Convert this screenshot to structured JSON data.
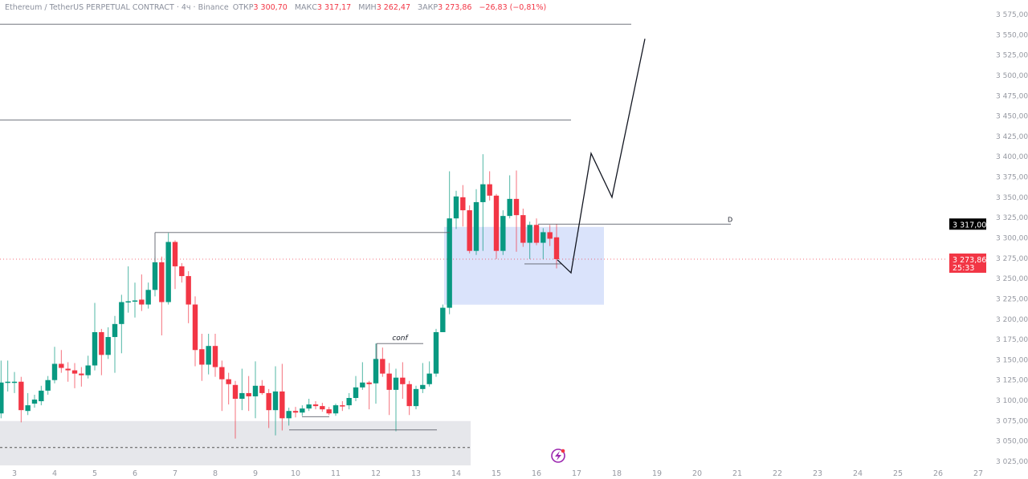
{
  "legend": {
    "symbol": "Ethereum / TetherUS PERPETUAL CONTRACT · 4ч · Binance",
    "open_label": "ОТКР",
    "open": "3 300,70",
    "high_label": "МАКС",
    "high": "3 317,17",
    "low_label": "МИН",
    "low": "3 262,47",
    "close_label": "ЗАКР",
    "close": "3 273,86",
    "change": "−26,83 (−0,81%)"
  },
  "price_tags": {
    "level": "3 317,00",
    "last": "3 273,86",
    "countdown": "25:33"
  },
  "colors": {
    "up": "#089981",
    "down": "#f23645",
    "box": "#d6e0fb",
    "zone": "#e6e7eb",
    "last_price_line": "#f23645",
    "level_tag": "#000000",
    "icon": "#9c27b0"
  },
  "icon": "lightning-bolt-icon",
  "chart_data": {
    "type": "candlestick",
    "ylim": [
      3020,
      3580
    ],
    "xlim": [
      2.64,
      27.2
    ],
    "y_ticks": [
      "3 575,00",
      "3 550,00",
      "3 525,00",
      "3 500,00",
      "3 475,00",
      "3 450,00",
      "3 425,00",
      "3 400,00",
      "3 375,00",
      "3 350,00",
      "3 325,00",
      "3 300,00",
      "3 275,00",
      "3 250,00",
      "3 225,00",
      "3 200,00",
      "3 175,00",
      "3 150,00",
      "3 125,00",
      "3 100,00",
      "3 075,00",
      "3 050,00",
      "3 025,00"
    ],
    "x_ticks": [
      "3",
      "4",
      "5",
      "6",
      "7",
      "8",
      "9",
      "10",
      "11",
      "12",
      "13",
      "14",
      "15",
      "16",
      "17",
      "18",
      "19",
      "20",
      "21",
      "22",
      "23",
      "24",
      "25",
      "26",
      "27"
    ],
    "first_candle": "2 16:00",
    "interval_hours": 4,
    "ohlc": [
      [
        3084,
        3149,
        3078,
        3122
      ],
      [
        3123,
        3149,
        3111,
        3123
      ],
      [
        3123,
        3135,
        3109,
        3123
      ],
      [
        3123,
        3129,
        3073,
        3088
      ],
      [
        3087,
        3109,
        3082,
        3094
      ],
      [
        3096,
        3107,
        3091,
        3101
      ],
      [
        3099,
        3118,
        3094,
        3112
      ],
      [
        3112,
        3130,
        3107,
        3125
      ],
      [
        3125,
        3166,
        3121,
        3145
      ],
      [
        3145,
        3162,
        3134,
        3140
      ],
      [
        3139,
        3147,
        3123,
        3137
      ],
      [
        3137,
        3146,
        3115,
        3133
      ],
      [
        3133,
        3141,
        3117,
        3131
      ],
      [
        3131,
        3155,
        3127,
        3143
      ],
      [
        3143,
        3220,
        3137,
        3184
      ],
      [
        3184,
        3188,
        3131,
        3156
      ],
      [
        3156,
        3190,
        3151,
        3178
      ],
      [
        3178,
        3204,
        3134,
        3194
      ],
      [
        3194,
        3230,
        3158,
        3221
      ],
      [
        3221,
        3265,
        3208,
        3222
      ],
      [
        3222,
        3245,
        3202,
        3223
      ],
      [
        3224,
        3255,
        3210,
        3218
      ],
      [
        3218,
        3245,
        3213,
        3236
      ],
      [
        3236,
        3277,
        3228,
        3270
      ],
      [
        3270,
        3277,
        3180,
        3221
      ],
      [
        3221,
        3306,
        3218,
        3295
      ],
      [
        3295,
        3297,
        3237,
        3265
      ],
      [
        3265,
        3269,
        3245,
        3253
      ],
      [
        3253,
        3259,
        3195,
        3218
      ],
      [
        3218,
        3228,
        3142,
        3162
      ],
      [
        3163,
        3182,
        3124,
        3144
      ],
      [
        3144,
        3182,
        3132,
        3167
      ],
      [
        3167,
        3182,
        3129,
        3141
      ],
      [
        3141,
        3149,
        3087,
        3126
      ],
      [
        3126,
        3134,
        3095,
        3120
      ],
      [
        3119,
        3124,
        3053,
        3102
      ],
      [
        3102,
        3139,
        3088,
        3109
      ],
      [
        3109,
        3130,
        3087,
        3105
      ],
      [
        3105,
        3148,
        3078,
        3118
      ],
      [
        3118,
        3125,
        3107,
        3109
      ],
      [
        3109,
        3114,
        3066,
        3088
      ],
      [
        3088,
        3142,
        3057,
        3111
      ],
      [
        3111,
        3145,
        3063,
        3078
      ],
      [
        3078,
        3091,
        3069,
        3087
      ],
      [
        3087,
        3092,
        3079,
        3085
      ],
      [
        3085,
        3094,
        3081,
        3090
      ],
      [
        3090,
        3102,
        3087,
        3095
      ],
      [
        3095,
        3099,
        3089,
        3093
      ],
      [
        3093,
        3097,
        3086,
        3089
      ],
      [
        3089,
        3092,
        3082,
        3084
      ],
      [
        3084,
        3096,
        3081,
        3094
      ],
      [
        3094,
        3099,
        3087,
        3093
      ],
      [
        3094,
        3109,
        3089,
        3103
      ],
      [
        3103,
        3130,
        3099,
        3116
      ],
      [
        3116,
        3147,
        3113,
        3122
      ],
      [
        3122,
        3124,
        3089,
        3120
      ],
      [
        3121,
        3170,
        3096,
        3151
      ],
      [
        3151,
        3165,
        3129,
        3133
      ],
      [
        3133,
        3146,
        3082,
        3113
      ],
      [
        3113,
        3139,
        3062,
        3128
      ],
      [
        3128,
        3147,
        3102,
        3120
      ],
      [
        3120,
        3124,
        3082,
        3093
      ],
      [
        3093,
        3118,
        3089,
        3114
      ],
      [
        3114,
        3146,
        3109,
        3119
      ],
      [
        3120,
        3148,
        3117,
        3133
      ],
      [
        3133,
        3188,
        3129,
        3184
      ],
      [
        3184,
        3218,
        3186,
        3214
      ],
      [
        3214,
        3382,
        3206,
        3324
      ],
      [
        3324,
        3358,
        3311,
        3351
      ],
      [
        3350,
        3365,
        3314,
        3334
      ],
      [
        3334,
        3340,
        3281,
        3284
      ],
      [
        3284,
        3360,
        3279,
        3344
      ],
      [
        3344,
        3403,
        3284,
        3366
      ],
      [
        3366,
        3382,
        3346,
        3352
      ],
      [
        3352,
        3354,
        3274,
        3284
      ],
      [
        3284,
        3334,
        3279,
        3327
      ],
      [
        3327,
        3377,
        3324,
        3348
      ],
      [
        3348,
        3383,
        3283,
        3328
      ],
      [
        3328,
        3336,
        3289,
        3294
      ],
      [
        3294,
        3320,
        3274,
        3316
      ],
      [
        3316,
        3324,
        3291,
        3294
      ],
      [
        3294,
        3312,
        3274,
        3307
      ],
      [
        3307,
        3316,
        3290,
        3299
      ],
      [
        3300.7,
        3317.17,
        3262.47,
        3273.86
      ]
    ],
    "last_price": 3273.86,
    "annotations": {
      "conf_label": "conf",
      "d_label": "D",
      "hlines": [
        {
          "price": 3563,
          "from": 2.64,
          "to": 18.36
        },
        {
          "price": 3445,
          "from": 2.64,
          "to": 16.86
        },
        {
          "price": 3306.6,
          "from": 6.5,
          "to": 13.84
        },
        {
          "price": 3317,
          "from": 16.04,
          "to": 20.84
        },
        {
          "price": 3170,
          "from": 12.02,
          "to": 13.18
        },
        {
          "price": 3063.7,
          "from": 9.84,
          "to": 13.52
        },
        {
          "price": 3080,
          "from": 10.16,
          "to": 10.84
        },
        {
          "price": 3268,
          "from": 15.7,
          "to": 16.62
        }
      ],
      "box": {
        "from": 13.7,
        "to": 17.68,
        "top": 3313.5,
        "bottom": 3217.8
      },
      "zone": {
        "from": 2.64,
        "to": 14.36,
        "top": 3074.6,
        "bottom": 3020
      },
      "dashed_level": 3042,
      "projection": [
        [
          16.52,
          3273
        ],
        [
          16.86,
          3257
        ],
        [
          17.36,
          3404
        ],
        [
          17.88,
          3350
        ],
        [
          18.7,
          3545
        ]
      ]
    }
  }
}
